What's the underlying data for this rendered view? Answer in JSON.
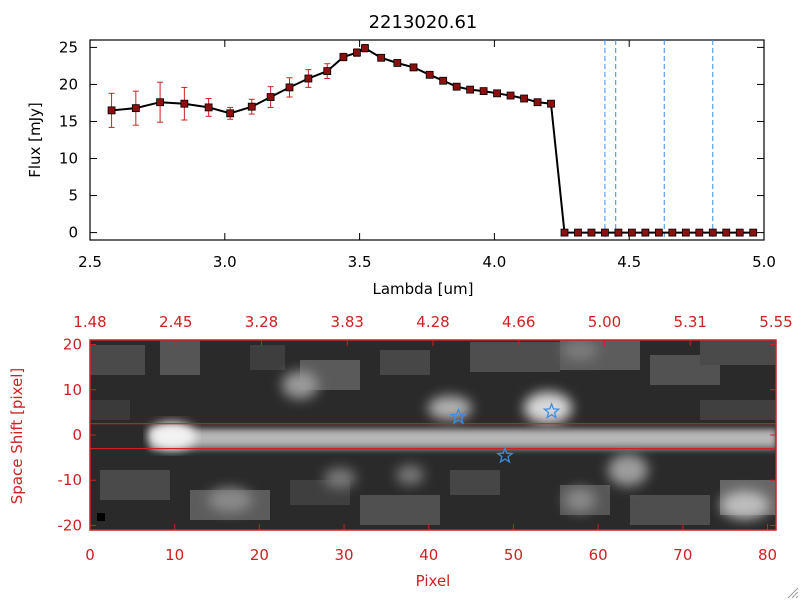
{
  "title": "2213020.61",
  "colors": {
    "axis_dark": "#000000",
    "accent_red": "#cc2222",
    "line": "#000000",
    "marker": "#8b1010",
    "error_bar": "#cc2222",
    "vline": "#3a8ee6",
    "star": "#3a8ee6",
    "band_line": "#cc2222"
  },
  "chart_data": [
    {
      "type": "line",
      "title": "2213020.61",
      "xlabel": "Lambda [um]",
      "ylabel": "Flux [mJy]",
      "xlim": [
        2.5,
        5.0
      ],
      "ylim": [
        -1,
        26
      ],
      "x_ticks": [
        "2.5",
        "3.0",
        "3.5",
        "4.0",
        "4.5",
        "5.0"
      ],
      "y_ticks": [
        "0",
        "5",
        "10",
        "15",
        "20",
        "25"
      ],
      "series": [
        {
          "x": [
            2.58,
            2.67,
            2.76,
            2.85,
            2.94,
            3.02,
            3.1,
            3.17,
            3.24,
            3.31,
            3.38,
            3.44,
            3.49,
            3.52,
            3.58,
            3.64,
            3.7,
            3.76,
            3.81,
            3.86,
            3.91,
            3.96,
            4.01,
            4.06,
            4.11,
            4.16,
            4.21,
            4.26,
            4.31,
            4.36,
            4.41,
            4.46,
            4.51,
            4.56,
            4.61,
            4.66,
            4.71,
            4.76,
            4.81,
            4.86,
            4.91,
            4.96
          ],
          "y": [
            16.5,
            16.8,
            17.6,
            17.4,
            16.9,
            16.1,
            17.0,
            18.3,
            19.6,
            20.8,
            21.8,
            23.7,
            24.3,
            24.9,
            23.6,
            22.9,
            22.3,
            21.3,
            20.5,
            19.7,
            19.3,
            19.1,
            18.8,
            18.5,
            18.1,
            17.6,
            17.4,
            0.0,
            0.0,
            0.0,
            0.0,
            0.0,
            0.0,
            0.0,
            0.0,
            0.0,
            0.0,
            0.0,
            0.0,
            0.0,
            0.0,
            0.0
          ],
          "yerr": [
            2.3,
            2.3,
            2.7,
            2.2,
            1.2,
            0.8,
            1.0,
            1.4,
            1.3,
            1.2,
            1.0,
            0.5,
            0.5,
            0.5,
            0.4,
            0.4,
            0.3,
            0.3,
            0.3,
            0.3,
            0.3,
            0.3,
            0.3,
            0.3,
            0.3,
            0.3,
            0.3,
            0.2,
            0.2,
            0.2,
            0.2,
            0.2,
            0.2,
            0.2,
            0.2,
            0.2,
            0.2,
            0.2,
            0.2,
            0.2,
            0.2,
            0.2
          ]
        }
      ],
      "vertical_lines_x": [
        4.41,
        4.45,
        4.63,
        4.81
      ]
    },
    {
      "type": "heatmap",
      "xlabel": "Pixel",
      "ylabel": "Space Shift [pixel]",
      "xlim": [
        0,
        81
      ],
      "ylim": [
        -21,
        21
      ],
      "x_ticks": [
        "0",
        "10",
        "20",
        "30",
        "40",
        "50",
        "60",
        "70",
        "80"
      ],
      "y_ticks": [
        "-20",
        "-10",
        "0",
        "10",
        "20"
      ],
      "top_ticks": [
        "1.48",
        "2.45",
        "3.28",
        "3.83",
        "4.28",
        "4.66",
        "5.00",
        "5.31",
        "5.55"
      ],
      "band_y": [
        -3.0,
        2.5
      ],
      "stars": [
        {
          "x": 43.5,
          "y": 4.0
        },
        {
          "x": 54.5,
          "y": 5.2
        },
        {
          "x": 49.0,
          "y": -4.6
        }
      ]
    }
  ]
}
